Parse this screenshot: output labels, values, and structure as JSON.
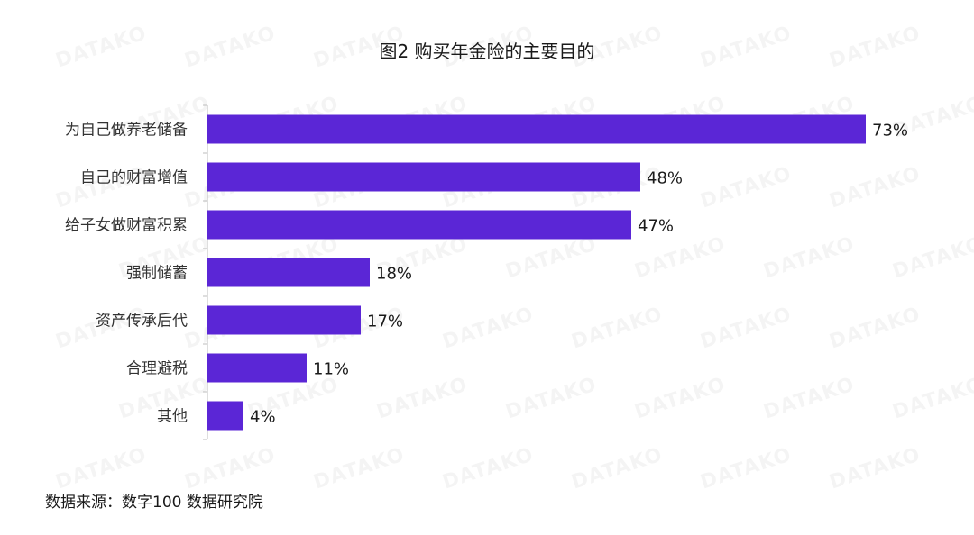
{
  "chart_data": {
    "type": "bar",
    "orientation": "horizontal",
    "title": "图2   购买年金险的主要目的",
    "categories": [
      "为自己做养老储备",
      "自己的财富增值",
      "给子女做财富积累",
      "强制储蓄",
      "资产传承后代",
      "合理避税",
      "其他"
    ],
    "values": [
      73,
      48,
      47,
      18,
      17,
      11,
      4
    ],
    "value_labels": [
      "73%",
      "48%",
      "47%",
      "18%",
      "17%",
      "11%",
      "4%"
    ],
    "xlabel": "",
    "ylabel": "",
    "xlim": [
      0,
      73
    ],
    "grid": false,
    "legend": "none",
    "bar_color": "#5b26d6"
  },
  "source": "数据来源：数字100  数据研究院",
  "watermark": "DATAKO"
}
